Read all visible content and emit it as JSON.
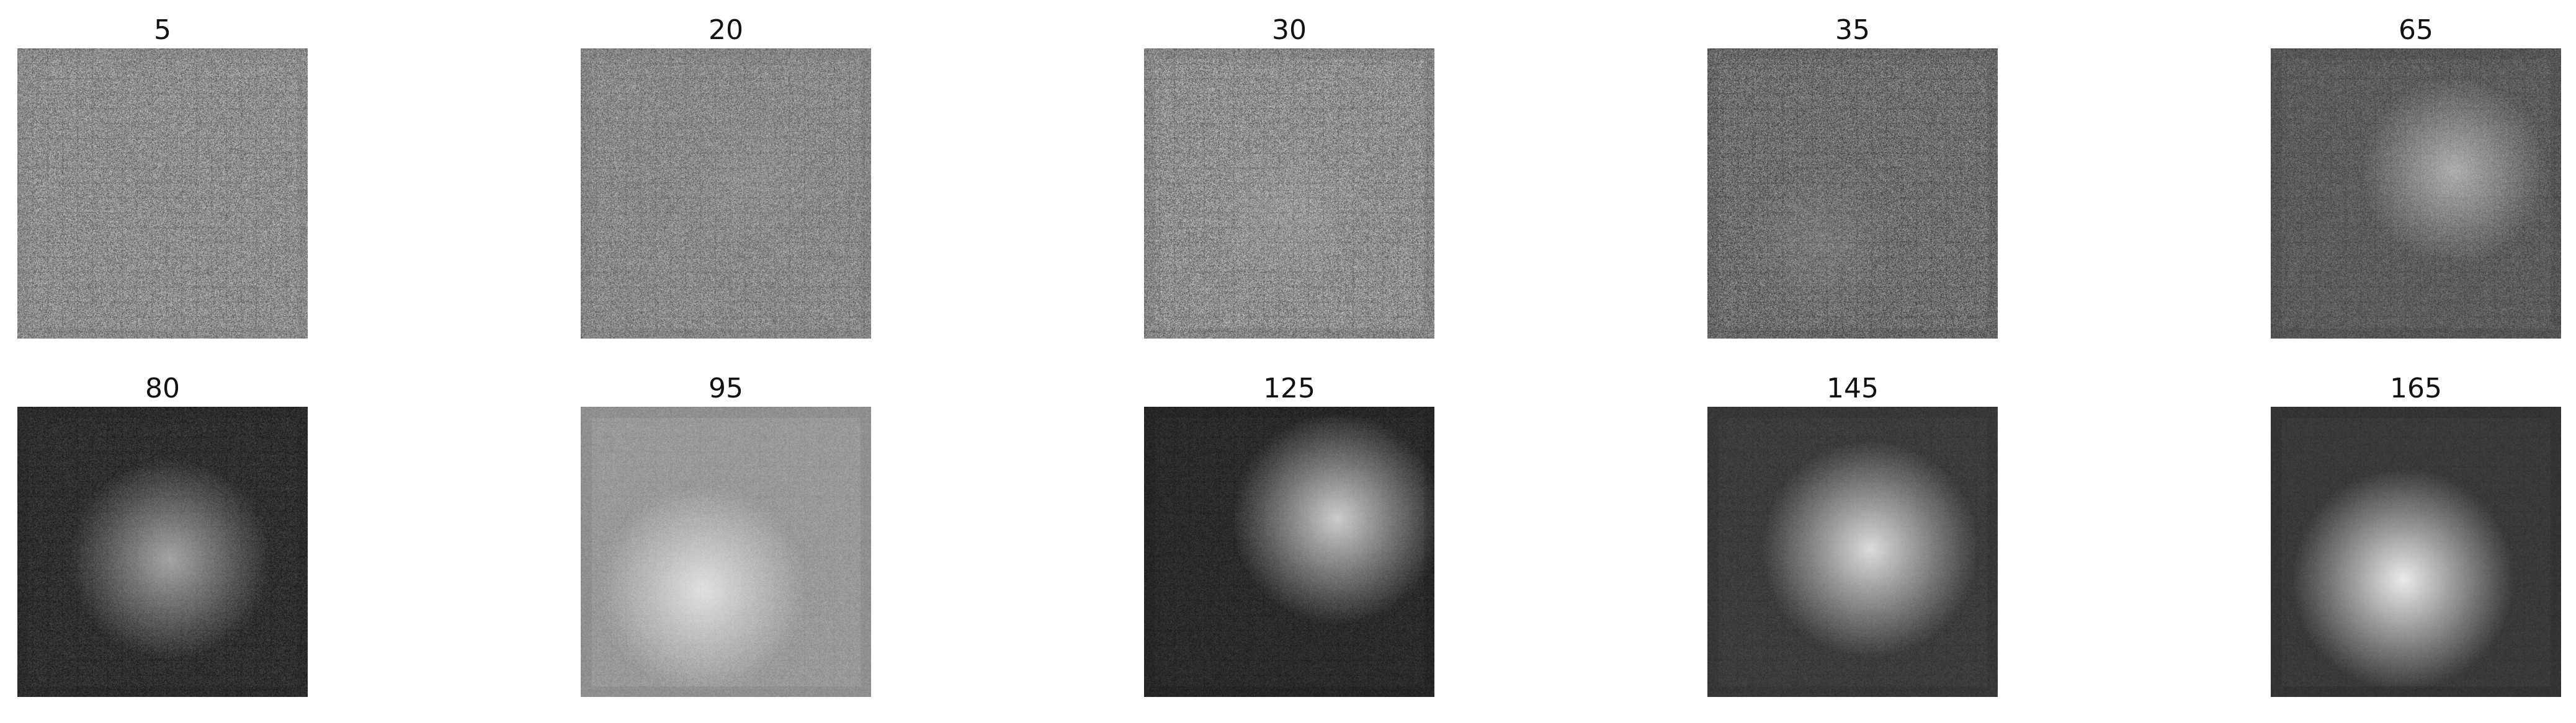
{
  "figure": {
    "panels": [
      {
        "label": "5",
        "tone": "#8e8e8e",
        "highlight": "#b5b5b5",
        "shadow": "#6e6e6e",
        "noise": 0.85,
        "blob": 0.0
      },
      {
        "label": "20",
        "tone": "#8a8a8a",
        "highlight": "#bababa",
        "shadow": "#666666",
        "noise": 0.75,
        "blob": 0.12
      },
      {
        "label": "30",
        "tone": "#8f8f8f",
        "highlight": "#c5c5c5",
        "shadow": "#4e4e4e",
        "noise": 0.9,
        "blob": 0.18
      },
      {
        "label": "35",
        "tone": "#6f6f6f",
        "highlight": "#aaaaaa",
        "shadow": "#3e3e3e",
        "noise": 0.8,
        "blob": 0.22
      },
      {
        "label": "65",
        "tone": "#5d5d5d",
        "highlight": "#f0f0f0",
        "shadow": "#2d2d2d",
        "noise": 0.45,
        "blob": 0.55
      },
      {
        "label": "80",
        "tone": "#303030",
        "highlight": "#d8d8d8",
        "shadow": "#151515",
        "noise": 0.35,
        "blob": 0.7
      },
      {
        "label": "95",
        "tone": "#9a9a9a",
        "highlight": "#f7f7f7",
        "shadow": "#5a5a5a",
        "noise": 0.25,
        "blob": 0.75
      },
      {
        "label": "125",
        "tone": "#2b2b2b",
        "highlight": "#f5f5f5",
        "shadow": "#101010",
        "noise": 0.25,
        "blob": 0.8
      },
      {
        "label": "145",
        "tone": "#3c3c3c",
        "highlight": "#f8f8f8",
        "shadow": "#202020",
        "noise": 0.2,
        "blob": 0.85
      },
      {
        "label": "165",
        "tone": "#3a3a3a",
        "highlight": "#ffffff",
        "shadow": "#111111",
        "noise": 0.15,
        "blob": 0.9
      }
    ]
  }
}
